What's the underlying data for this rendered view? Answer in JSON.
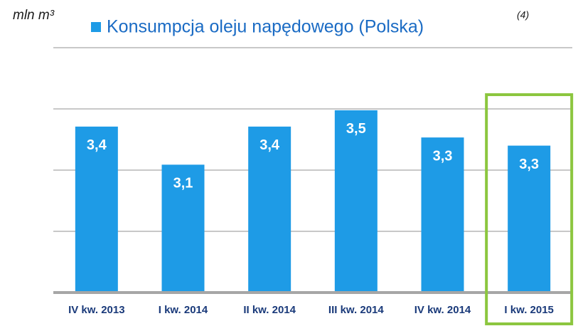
{
  "chart_data": {
    "type": "bar",
    "y_label": "mln m³",
    "categories": [
      "IV kw. 2013",
      "I kw. 2014",
      "II kw. 2014",
      "III kw. 2014",
      "IV kw. 2014",
      "I kw. 2015"
    ],
    "series": [
      {
        "name": "Konsumpcja oleju napędowego (Polska)",
        "footnote": "(4)",
        "color": "#1e9be6",
        "values": [
          3.42,
          3.14,
          3.42,
          3.54,
          3.34,
          3.28
        ],
        "value_labels": [
          "3,4",
          "3,1",
          "3,4",
          "3,5",
          "3,3",
          "3,3"
        ]
      }
    ],
    "ylim": [
      2.2,
      4.0
    ],
    "yticks": [
      2.2,
      2.65,
      3.1,
      3.55,
      4.0
    ],
    "grid": true,
    "highlight_color": "#8cc63f"
  }
}
